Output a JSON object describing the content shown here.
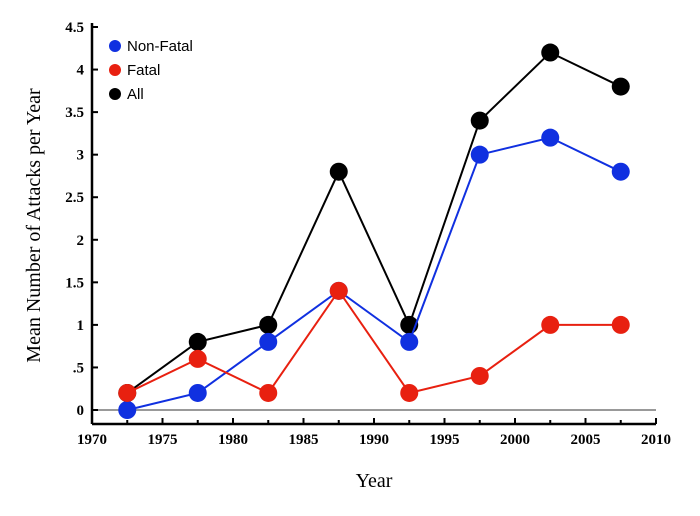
{
  "chart_data": {
    "type": "line",
    "title": "",
    "xlabel": "Year",
    "ylabel": "Mean Number of Attacks per Year",
    "xlim": [
      1970,
      2010
    ],
    "ylim": [
      0,
      4.5
    ],
    "x_ticks": [
      "1970",
      "1975",
      "1980",
      "1985",
      "1990",
      "1995",
      "2000",
      "2005",
      "2010"
    ],
    "y_ticks": [
      "0",
      ".5",
      "1",
      "1.5",
      "2",
      "2.5",
      "3",
      "3.5",
      "4",
      "4.5"
    ],
    "legend_position": "top-left",
    "x": [
      1972.5,
      1977.5,
      1982.5,
      1987.5,
      1992.5,
      1997.5,
      2002.5,
      2007.5
    ],
    "series": [
      {
        "name": "Non-Fatal",
        "color": "#1030e0",
        "values": [
          0,
          0.2,
          0.8,
          1.4,
          0.8,
          3.0,
          3.2,
          2.8
        ]
      },
      {
        "name": "Fatal",
        "color": "#e82010",
        "values": [
          0.2,
          0.6,
          0.2,
          1.4,
          0.2,
          0.4,
          1.0,
          1.0
        ]
      },
      {
        "name": "All",
        "color": "#000000",
        "values": [
          0.2,
          0.8,
          1.0,
          2.8,
          1.0,
          3.4,
          4.2,
          3.8
        ]
      }
    ]
  }
}
